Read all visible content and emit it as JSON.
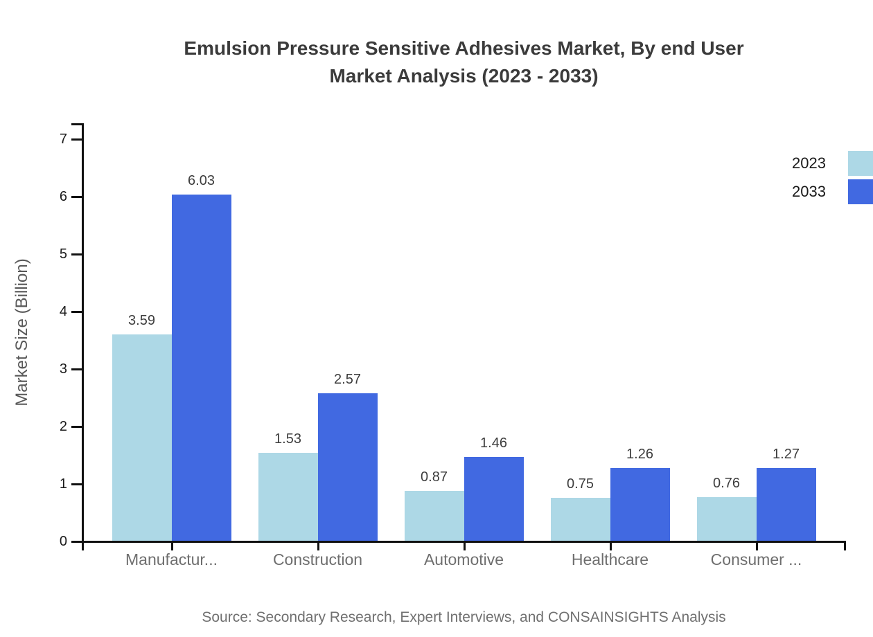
{
  "title": {
    "line1": "Emulsion Pressure Sensitive Adhesives Market, By end User",
    "line2": "Market Analysis (2023 - 2033)"
  },
  "source_note": "Source: Secondary Research, Expert Interviews, and CONSAINSIGHTS Analysis",
  "chart_data": {
    "type": "bar",
    "title": "Emulsion Pressure Sensitive Adhesives Market, By end User Market Analysis (2023 - 2033)",
    "categories": [
      "Manufactur...",
      "Construction",
      "Automotive",
      "Healthcare",
      "Consumer ..."
    ],
    "series": [
      {
        "name": "2023",
        "color": "#ADD8E6",
        "values": [
          3.59,
          1.53,
          0.87,
          0.75,
          0.76
        ]
      },
      {
        "name": "2033",
        "color": "#4169E1",
        "values": [
          6.03,
          2.57,
          1.46,
          1.26,
          1.27
        ]
      }
    ],
    "value_labels": [
      "3.59",
      "6.03",
      "1.53",
      "2.57",
      "0.87",
      "1.46",
      "0.75",
      "1.26",
      "0.76",
      "1.27"
    ],
    "xlabel": "",
    "ylabel": "Market Size (Billion)",
    "ylim": [
      0,
      7
    ],
    "y_tick_step": 1,
    "y_tick_labels": [
      "0",
      "1",
      "2",
      "3",
      "4",
      "5",
      "6",
      "7"
    ],
    "grid": false,
    "legend_position": "top-right",
    "bar_value_labels_shown": true
  },
  "colors": {
    "axis": "#111111",
    "title_text": "#3b3b3b",
    "value_label_text": "#3d3d3d",
    "muted_text": "#6e6e6e",
    "series_2023": "#ADD8E6",
    "series_2033": "#4169E1"
  }
}
